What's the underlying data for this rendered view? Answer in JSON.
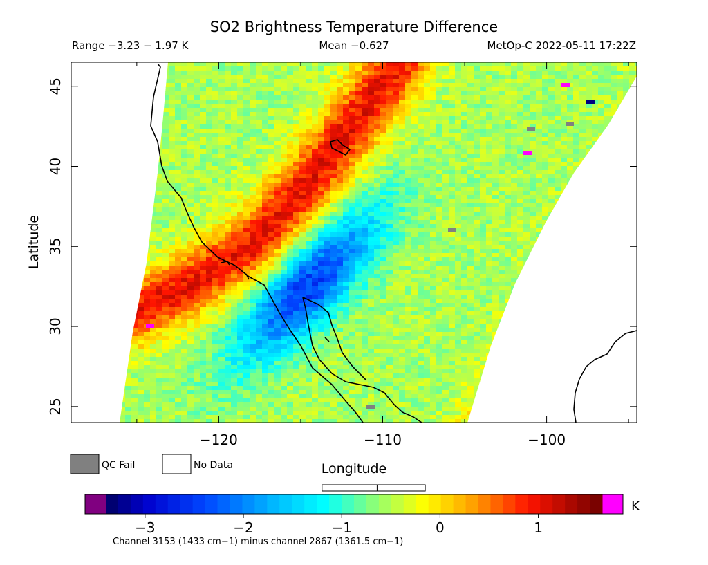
{
  "chart_data": {
    "type": "heatmap",
    "title": "SO2 Brightness Temperature Difference",
    "range_text": "Range −3.23 − 1.97 K",
    "mean_text": "Mean −0.627",
    "satellite_text": "MetOp-C 2022-05-11 17:22Z",
    "xlabel": "Longitude",
    "ylabel": "Latitude",
    "xlim": [
      -129,
      -94.5
    ],
    "ylim": [
      24,
      46.5
    ],
    "x_ticks": [
      -120,
      -110,
      -100
    ],
    "x_tick_labels": [
      "−120",
      "−110",
      "−100"
    ],
    "y_ticks": [
      25,
      30,
      35,
      40,
      45
    ],
    "y_tick_labels": [
      "25",
      "30",
      "35",
      "40",
      "45"
    ],
    "value_range": [
      -3.23,
      1.97
    ],
    "mean": -0.627,
    "legend": {
      "qc_fail_label": "QC Fail",
      "qc_fail_color": "#808080",
      "no_data_label": "No Data",
      "no_data_color": "#ffffff"
    },
    "colorbar": {
      "min": -3.4,
      "max": 1.65,
      "ticks": [
        -3,
        -2,
        -1,
        0,
        1
      ],
      "tick_labels": [
        "−3",
        "−2",
        "−1",
        "0",
        "1"
      ],
      "unit": "K",
      "under_color": "#800080",
      "over_color": "#ff00ff",
      "boxplot": {
        "min": -3.23,
        "q1": -1.2,
        "median": -0.64,
        "q3": -0.15,
        "max": 1.97
      },
      "caption": "Channel 3153 (1433 cm−1) minus channel 2867 (1361.5 cm−1)"
    },
    "field_features": {
      "background": -0.55,
      "smoke_plume": {
        "peak": 1.0,
        "path_lonlat": [
          [
            -127,
            30
          ],
          [
            -122,
            32.5
          ],
          [
            -118,
            35
          ],
          [
            -114.5,
            39
          ],
          [
            -111.5,
            43
          ],
          [
            -109,
            46.5
          ]
        ]
      },
      "so2_cloud": {
        "peak": -2.5,
        "center_lonlat": [
          -114.5,
          32.5
        ],
        "axis_deg": 48
      },
      "east_warm_band": {
        "peak": 0.6
      }
    }
  }
}
